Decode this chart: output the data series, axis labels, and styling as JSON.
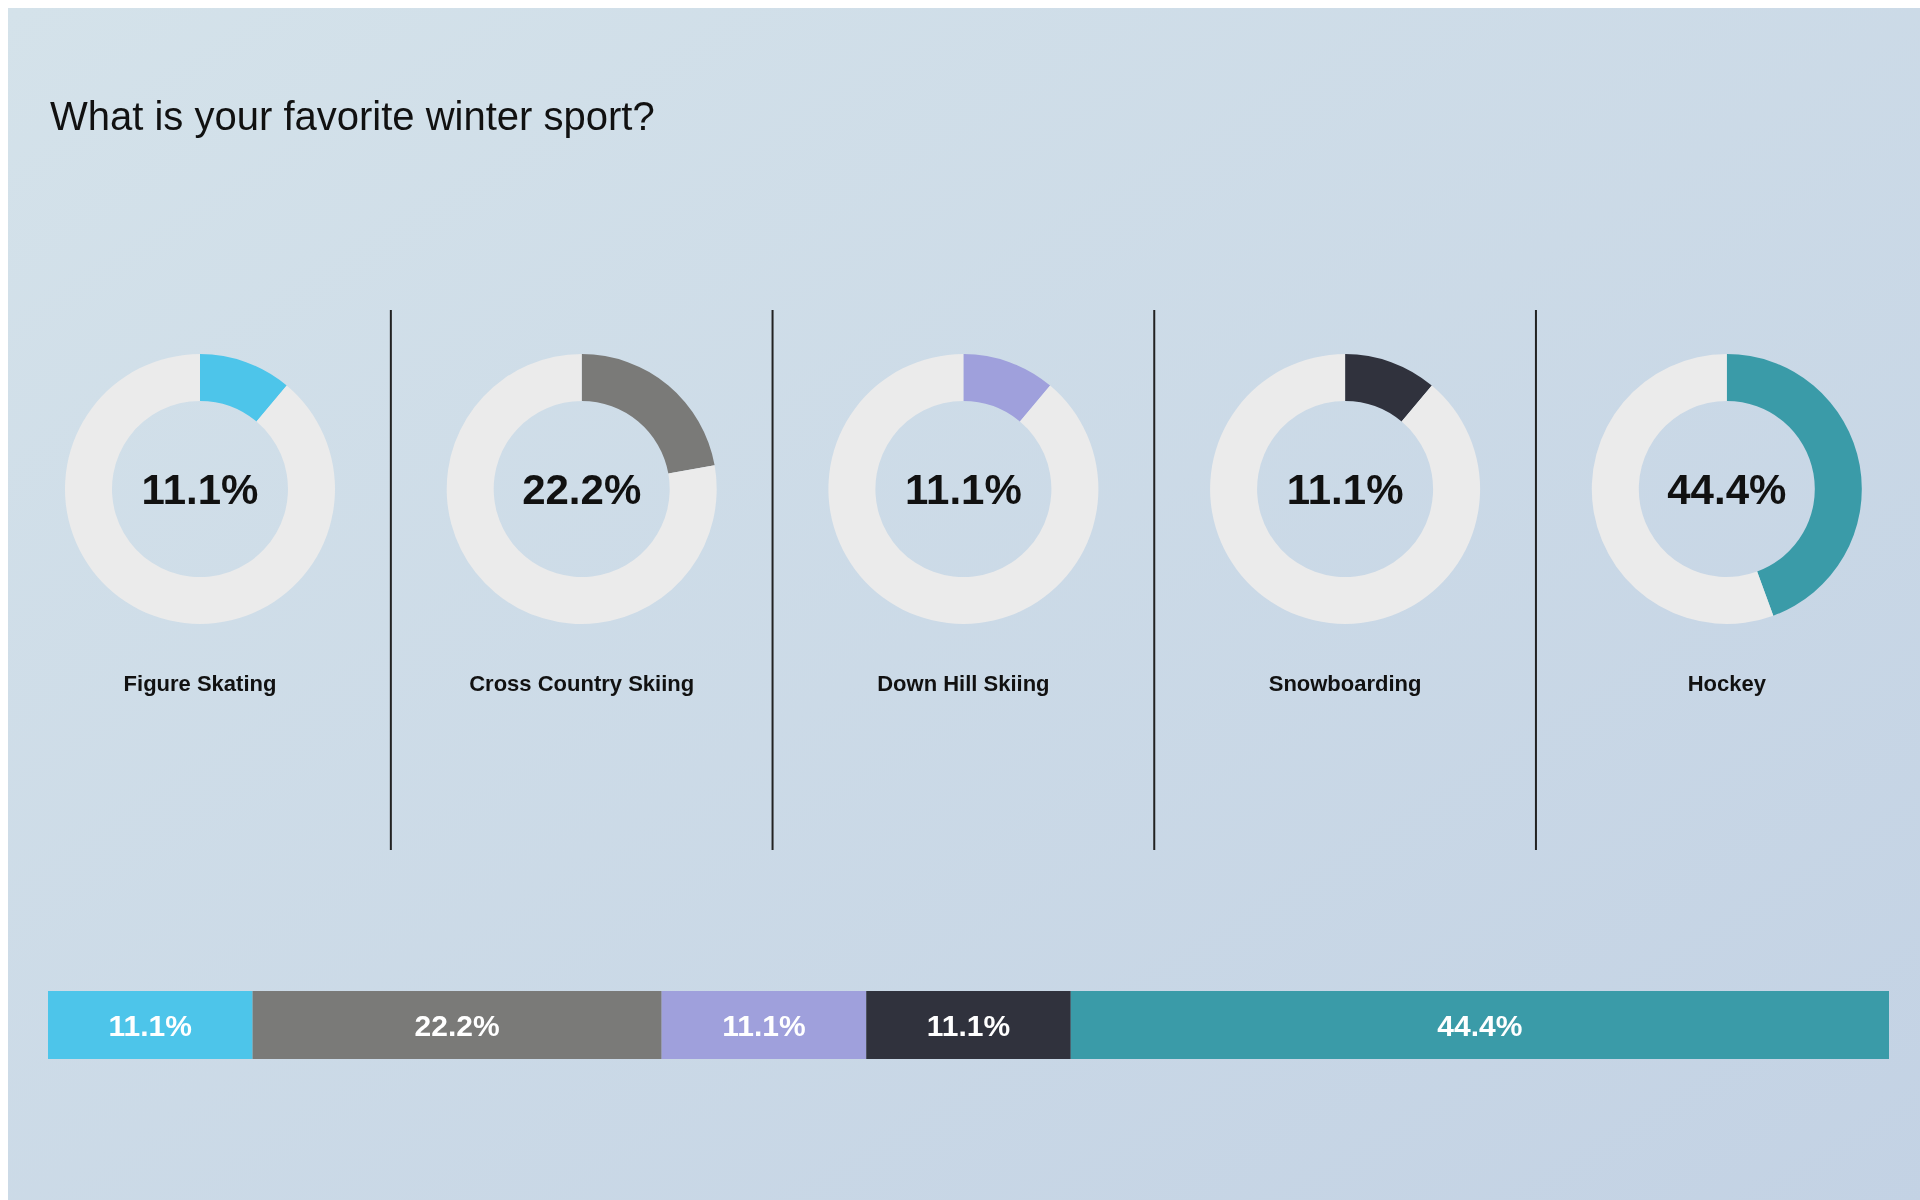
{
  "chart_data": [
    {
      "type": "donut",
      "title": "What is your favorite winter sport?",
      "xlabel": "Figure Skating",
      "categories": [
        null,
        null
      ],
      "values": [
        11.1,
        88.9
      ],
      "colors": [
        "#4dc5ea",
        "#ebebeb"
      ],
      "annotations": [
        "11.1%"
      ]
    },
    {
      "type": "donut",
      "xlabel": "Cross Country Skiing",
      "categories": [
        null,
        null
      ],
      "values": [
        22.2,
        77.8
      ],
      "colors": [
        "#7a7a78",
        "#ebebeb"
      ],
      "annotations": [
        "22.2%"
      ]
    },
    {
      "type": "donut",
      "xlabel": "Down Hill Skiing",
      "categories": [
        null,
        null
      ],
      "values": [
        11.1,
        88.9
      ],
      "colors": [
        "#9fa0dc",
        "#ebebeb"
      ],
      "annotations": [
        "11.1%"
      ]
    },
    {
      "type": "donut",
      "xlabel": "Snowboarding",
      "categories": [
        null,
        null
      ],
      "values": [
        11.1,
        88.9
      ],
      "colors": [
        "#30323d",
        "#ebebeb"
      ],
      "annotations": [
        "11.1%"
      ]
    },
    {
      "type": "donut",
      "xlabel": "Hockey",
      "categories": [
        null,
        null
      ],
      "values": [
        44.4,
        55.6
      ],
      "colors": [
        "#3a9ba8",
        "#ebebeb"
      ],
      "annotations": [
        "44.4%"
      ]
    },
    {
      "type": "bar",
      "orientation": "horizontal",
      "stacked": true,
      "categories": [
        null
      ],
      "xlim": [
        0,
        99.9
      ],
      "series": [
        {
          "color": "#4dc5ea",
          "values": [
            11.1
          ],
          "value_labels": [
            "11.1%"
          ]
        },
        {
          "color": "#7a7a78",
          "values": [
            22.2
          ],
          "value_labels": [
            "22.2%"
          ]
        },
        {
          "color": "#9fa0dc",
          "values": [
            11.1
          ],
          "value_labels": [
            "11.1%"
          ]
        },
        {
          "color": "#30323d",
          "values": [
            11.1
          ],
          "value_labels": [
            "11.1%"
          ]
        },
        {
          "color": "#3a9ba8",
          "values": [
            44.4
          ],
          "value_labels": [
            "44.4%"
          ]
        }
      ]
    }
  ]
}
